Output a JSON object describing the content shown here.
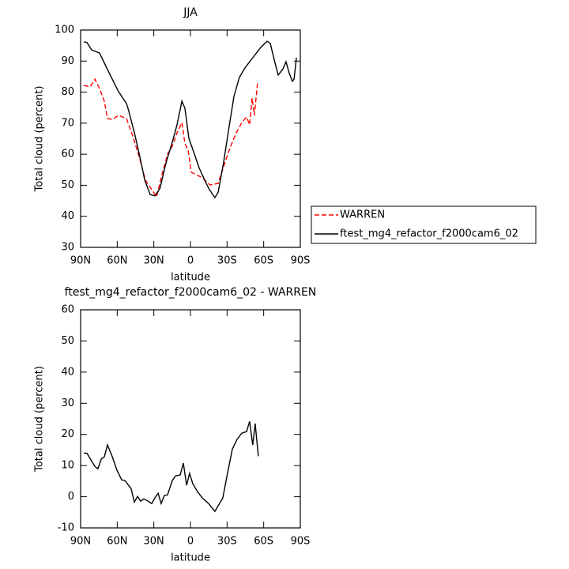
{
  "chart_data": [
    {
      "type": "line",
      "title": "JJA",
      "xlabel": "latitude",
      "ylabel": "Total cloud (percent)",
      "xlim": [
        90,
        -90
      ],
      "xticks": [
        {
          "value": 90,
          "label": "90N"
        },
        {
          "value": 60,
          "label": "60N"
        },
        {
          "value": 30,
          "label": "30N"
        },
        0,
        {
          "value": -30,
          "label": "30S"
        },
        {
          "value": -60,
          "label": "60S"
        },
        {
          "value": -90,
          "label": "90S"
        }
      ],
      "ylim": [
        30,
        100
      ],
      "yticks": [
        30,
        40,
        50,
        60,
        70,
        80,
        90,
        100
      ],
      "legend": "right",
      "series": [
        {
          "name": "WARREN",
          "color": "#ff0000",
          "dashed": true,
          "x": [
            87.4,
            82.2,
            78.3,
            74.5,
            70.6,
            68,
            64,
            59,
            52.4,
            47.3,
            42.1,
            37,
            31.7,
            27.8,
            24,
            18.8,
            14.9,
            11,
            7,
            4.5,
            1.9,
            -0.6,
            -5.8,
            -9.7,
            -16,
            -22.7,
            -26.5,
            -31.7,
            -36.9,
            -42.1,
            -46,
            -48.5,
            -50.5,
            -52.4,
            -55
          ],
          "values": [
            82.2,
            81.7,
            84.2,
            81.2,
            77.1,
            71.5,
            71.2,
            72.5,
            71.5,
            65.9,
            59.3,
            51.7,
            48.6,
            46.3,
            52.4,
            60,
            62.6,
            66.9,
            70.2,
            63.4,
            61.3,
            54.2,
            53.2,
            52.4,
            50.1,
            50.6,
            55.2,
            61.3,
            66.4,
            70.2,
            72,
            69.5,
            78.1,
            72.5,
            83
          ]
        },
        {
          "name": "ftest_mg4_refactor_f2000cam6_02",
          "color": "#000000",
          "dashed": false,
          "x": [
            87.4,
            84.8,
            81,
            74.5,
            65.4,
            59,
            52.4,
            51,
            46,
            40.8,
            37.5,
            33,
            29,
            25,
            20,
            14.9,
            11,
            7,
            4.5,
            1.3,
            -2.6,
            -7,
            -12.3,
            -15.5,
            -20,
            -22.7,
            -27.2,
            -31.7,
            -35.6,
            -40,
            -44.7,
            -51,
            -57.6,
            -62.8,
            -65.4,
            -69,
            -71.9,
            -75.8,
            -78.3,
            -81,
            -83.5,
            -84.9,
            -86.8
          ],
          "values": [
            96.2,
            96,
            93.6,
            92.6,
            85.2,
            80.2,
            76.3,
            74.6,
            67,
            58,
            51.7,
            47,
            46.6,
            49,
            57.3,
            63.9,
            69.5,
            77.1,
            74.8,
            65.1,
            60.8,
            55.7,
            51.1,
            48.6,
            46,
            47.8,
            57.5,
            69,
            78.6,
            84.7,
            87.8,
            91.1,
            94.4,
            96.4,
            95.7,
            89.8,
            85.5,
            87.5,
            89.8,
            86,
            83.5,
            84.2,
            91.1
          ]
        }
      ]
    },
    {
      "type": "line",
      "title": "ftest_mg4_refactor_f2000cam6_02 - WARREN",
      "xlabel": "latitude",
      "ylabel": "Total cloud (percent)",
      "xlim": [
        90,
        -90
      ],
      "xticks": [
        {
          "value": 90,
          "label": "90N"
        },
        {
          "value": 60,
          "label": "60N"
        },
        {
          "value": 30,
          "label": "30N"
        },
        0,
        {
          "value": -30,
          "label": "30S"
        },
        {
          "value": -60,
          "label": "60S"
        },
        {
          "value": -90,
          "label": "90S"
        }
      ],
      "ylim": [
        -10,
        60
      ],
      "yticks": [
        -10,
        0,
        10,
        20,
        30,
        40,
        50,
        60
      ],
      "series": [
        {
          "color": "#000000",
          "dashed": false,
          "x": [
            87.4,
            84.8,
            82.2,
            78.3,
            75.8,
            73,
            70.6,
            68,
            64,
            60.2,
            56.3,
            53.7,
            48.6,
            46,
            43.4,
            40.8,
            38.2,
            35.6,
            31.7,
            29.2,
            26.5,
            24,
            21.4,
            18.8,
            14.9,
            12.3,
            8.4,
            5.8,
            3.2,
            0.7,
            -1.9,
            -5.8,
            -9.7,
            -14.9,
            -20,
            -22.7,
            -26.5,
            -30.4,
            -34.3,
            -38.2,
            -42.1,
            -46,
            -48.5,
            -51,
            -53,
            -55.6
          ],
          "values": [
            14,
            14,
            12.3,
            9.7,
            9,
            12.2,
            12.8,
            16.6,
            12.8,
            8.5,
            5.4,
            5.2,
            2.6,
            -1.7,
            0.1,
            -1.4,
            -0.7,
            -1.2,
            -2.2,
            -0.4,
            1.1,
            -2.2,
            0.4,
            0.6,
            5.2,
            6.7,
            7,
            10.8,
            3.7,
            7.5,
            4.2,
            1.6,
            -0.4,
            -2.2,
            -4.7,
            -2.9,
            -0.4,
            7.7,
            15.3,
            18.4,
            20.4,
            20.9,
            24.2,
            16.6,
            23.5,
            13
          ]
        }
      ]
    }
  ]
}
